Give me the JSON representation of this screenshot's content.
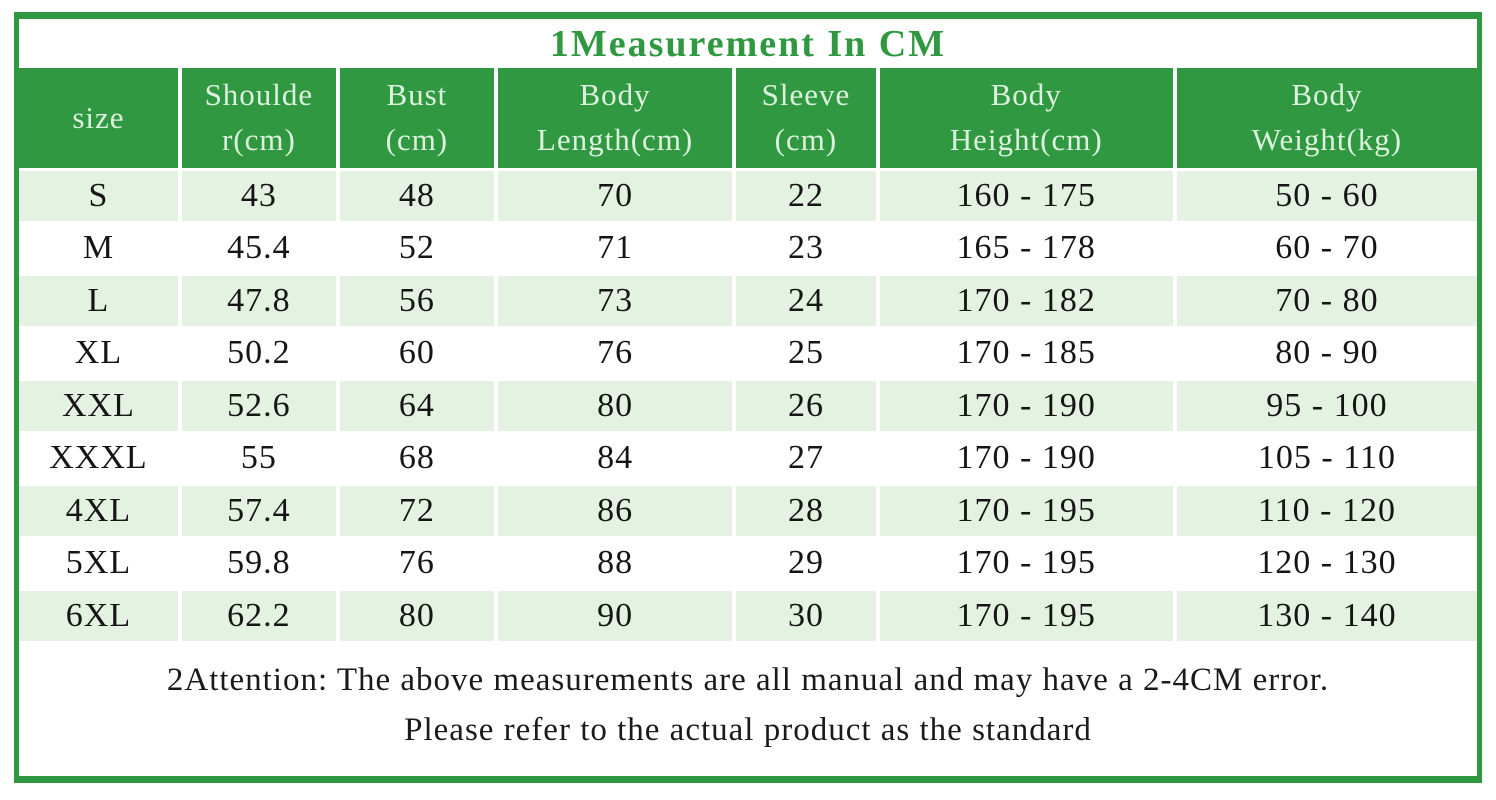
{
  "title": "1Measurement In CM",
  "header_display": [
    {
      "line1": "size",
      "line2": ""
    },
    {
      "line1": "Shoulde",
      "line2": "r(cm)"
    },
    {
      "line1": "Bust",
      "line2": "(cm)"
    },
    {
      "line1": "Body",
      "line2": "Length(cm)"
    },
    {
      "line1": "Sleeve",
      "line2": "(cm)"
    },
    {
      "line1": "Body",
      "line2": "Height(cm)"
    },
    {
      "line1": "Body",
      "line2": "Weight(kg)"
    }
  ],
  "chart_data": {
    "type": "table",
    "title": "1Measurement In CM",
    "columns": [
      "size",
      "Shoulder(cm)",
      "Bust(cm)",
      "Body Length(cm)",
      "Sleeve(cm)",
      "Body Height(cm)",
      "Body Weight(kg)"
    ],
    "rows": [
      [
        "S",
        "43",
        "48",
        "70",
        "22",
        "160 - 175",
        "50 - 60"
      ],
      [
        "M",
        "45.4",
        "52",
        "71",
        "23",
        "165 - 178",
        "60 - 70"
      ],
      [
        "L",
        "47.8",
        "56",
        "73",
        "24",
        "170 - 182",
        "70 - 80"
      ],
      [
        "XL",
        "50.2",
        "60",
        "76",
        "25",
        "170 - 185",
        "80 - 90"
      ],
      [
        "XXL",
        "52.6",
        "64",
        "80",
        "26",
        "170 - 190",
        "95 - 100"
      ],
      [
        "XXXL",
        "55",
        "68",
        "84",
        "27",
        "170 - 190",
        "105 - 110"
      ],
      [
        "4XL",
        "57.4",
        "72",
        "86",
        "28",
        "170 - 195",
        "110 - 120"
      ],
      [
        "5XL",
        "59.8",
        "76",
        "88",
        "29",
        "170 - 195",
        "120 - 130"
      ],
      [
        "6XL",
        "62.2",
        "80",
        "90",
        "30",
        "170 - 195",
        "130 - 140"
      ]
    ]
  },
  "notes": {
    "line1": "2Attention: The above measurements are all manual and may have a 2-4CM error.",
    "line2": "Please refer to the actual product as the standard"
  },
  "colors": {
    "green": "#2f9840",
    "row_green": "#e4f3e1",
    "header_text": "#ddf2de",
    "body_text": "#151515"
  }
}
